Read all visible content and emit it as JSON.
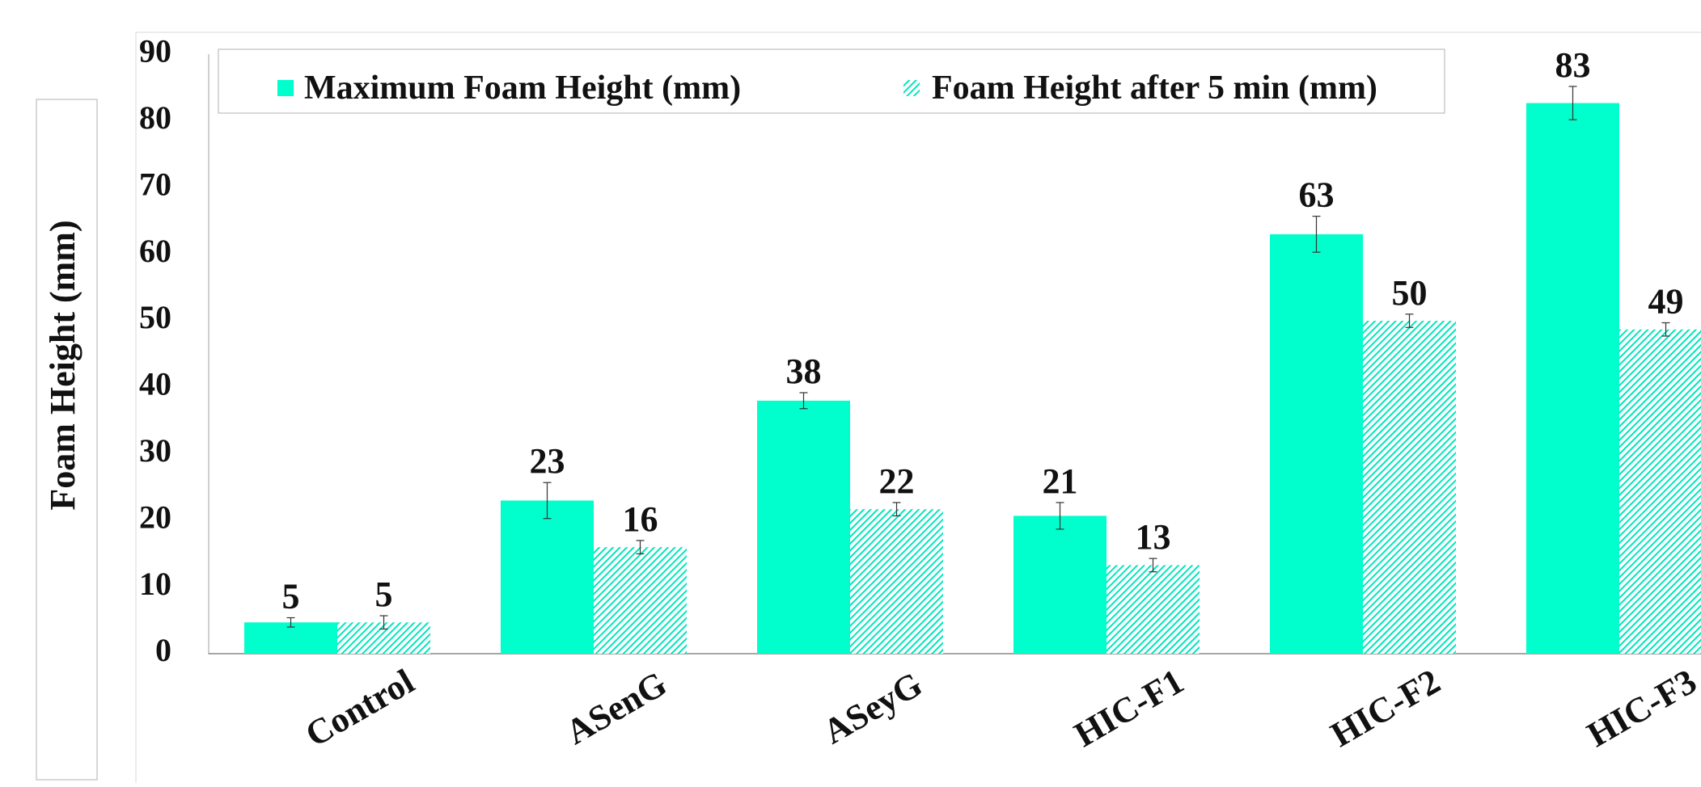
{
  "chart_data": {
    "type": "bar",
    "ylabel": "Foam Height (mm)",
    "ylim": [
      0,
      90
    ],
    "yticks": [
      0,
      10,
      20,
      30,
      40,
      50,
      60,
      70,
      80,
      90
    ],
    "categories": [
      "Control",
      "ASenG",
      "ASeyG",
      "HIC-F1",
      "HIC-F2",
      "HIC-F3"
    ],
    "series": [
      {
        "name": "Maximum Foam Height (mm)",
        "values": [
          4.7,
          23.0,
          38.0,
          20.7,
          63.0,
          82.7
        ],
        "errors": [
          0.7,
          2.7,
          1.2,
          2.0,
          2.7,
          2.5
        ],
        "labels": [
          "5",
          "23",
          "38",
          "21",
          "63",
          "83"
        ],
        "color": "#00FFCC",
        "pattern": "solid"
      },
      {
        "name": "Foam Height after 5 min (mm)",
        "values": [
          4.7,
          16.0,
          21.7,
          13.3,
          50.0,
          48.7
        ],
        "errors": [
          1.0,
          1.0,
          1.0,
          1.0,
          1.0,
          1.0
        ],
        "labels": [
          "5",
          "16",
          "22",
          "13",
          "50",
          "49"
        ],
        "color": "#00FFCC",
        "pattern": "hatched"
      }
    ],
    "legend_position": "top",
    "grid": false,
    "category_label_rotation": -30
  }
}
